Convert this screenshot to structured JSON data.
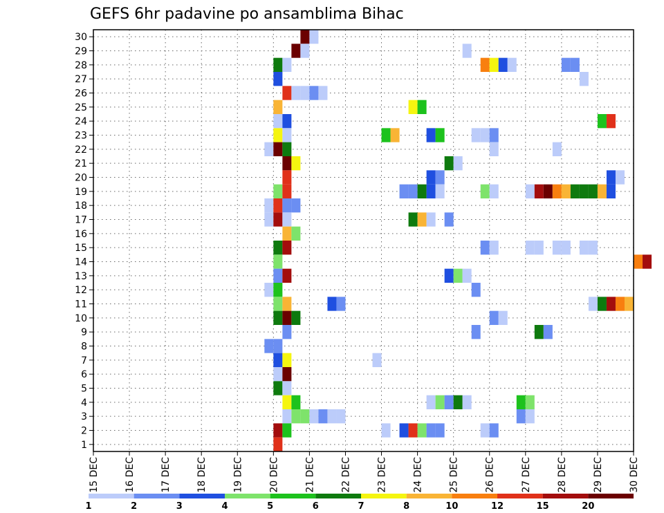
{
  "chart_data": {
    "type": "heatmap",
    "title": "GEFS 6hr padavine po ansamblima Bihac",
    "xlabel": "",
    "ylabel": "",
    "x_ticks": [
      "15 DEC",
      "16 DEC",
      "17 DEC",
      "18 DEC",
      "19 DEC",
      "20 DEC",
      "21 DEC",
      "22 DEC",
      "23 DEC",
      "24 DEC",
      "25 DEC",
      "26 DEC",
      "27 DEC",
      "28 DEC",
      "29 DEC",
      "30 DEC"
    ],
    "y_ticks": [
      "1",
      "2",
      "3",
      "4",
      "5",
      "6",
      "7",
      "8",
      "9",
      "10",
      "11",
      "12",
      "13",
      "14",
      "15",
      "16",
      "17",
      "18",
      "19",
      "20",
      "21",
      "22",
      "23",
      "24",
      "25",
      "26",
      "27",
      "28",
      "29",
      "30"
    ],
    "grid": true,
    "legend_placement": "bottom",
    "levels": [
      "1",
      "2",
      "3",
      "4",
      "5",
      "6",
      "7",
      "8",
      "10",
      "12",
      "15",
      "20"
    ],
    "colors": [
      "#bcccfa",
      "#6b8ef2",
      "#1f4fe0",
      "#7ee36b",
      "#1dc21d",
      "#0e7a0e",
      "#f5f510",
      "#f9b435",
      "#f87f0f",
      "#e0311a",
      "#a30d0d",
      "#6b0000"
    ],
    "cells": [
      {
        "m": 30,
        "d": 20.75,
        "c": 11
      },
      {
        "m": 30,
        "d": 21.0,
        "c": 0
      },
      {
        "m": 29,
        "d": 20.5,
        "c": 11
      },
      {
        "m": 29,
        "d": 20.75,
        "c": 0
      },
      {
        "m": 29,
        "d": 25.25,
        "c": 0
      },
      {
        "m": 28,
        "d": 20.0,
        "c": 5
      },
      {
        "m": 28,
        "d": 20.25,
        "c": 0
      },
      {
        "m": 28,
        "d": 25.75,
        "c": 8
      },
      {
        "m": 28,
        "d": 26.0,
        "c": 6
      },
      {
        "m": 28,
        "d": 26.25,
        "c": 2
      },
      {
        "m": 28,
        "d": 26.5,
        "c": 0
      },
      {
        "m": 28,
        "d": 28.0,
        "c": 1
      },
      {
        "m": 28,
        "d": 28.25,
        "c": 1
      },
      {
        "m": 27,
        "d": 20.0,
        "c": 2
      },
      {
        "m": 27,
        "d": 28.5,
        "c": 0
      },
      {
        "m": 26,
        "d": 20.25,
        "c": 9
      },
      {
        "m": 26,
        "d": 20.5,
        "c": 0
      },
      {
        "m": 26,
        "d": 20.75,
        "c": 0
      },
      {
        "m": 26,
        "d": 21.0,
        "c": 1
      },
      {
        "m": 26,
        "d": 21.25,
        "c": 0
      },
      {
        "m": 25,
        "d": 20.0,
        "c": 7
      },
      {
        "m": 25,
        "d": 23.75,
        "c": 6
      },
      {
        "m": 25,
        "d": 24.0,
        "c": 4
      },
      {
        "m": 24,
        "d": 20.0,
        "c": 0
      },
      {
        "m": 24,
        "d": 20.25,
        "c": 2
      },
      {
        "m": 24,
        "d": 29.0,
        "c": 4
      },
      {
        "m": 24,
        "d": 29.25,
        "c": 9
      },
      {
        "m": 23,
        "d": 20.0,
        "c": 6
      },
      {
        "m": 23,
        "d": 20.25,
        "c": 0
      },
      {
        "m": 23,
        "d": 23.0,
        "c": 4
      },
      {
        "m": 23,
        "d": 23.25,
        "c": 7
      },
      {
        "m": 23,
        "d": 24.25,
        "c": 2
      },
      {
        "m": 23,
        "d": 24.5,
        "c": 4
      },
      {
        "m": 23,
        "d": 25.5,
        "c": 0
      },
      {
        "m": 23,
        "d": 25.75,
        "c": 0
      },
      {
        "m": 23,
        "d": 26.0,
        "c": 1
      },
      {
        "m": 22,
        "d": 19.75,
        "c": 0
      },
      {
        "m": 22,
        "d": 20.0,
        "c": 11
      },
      {
        "m": 22,
        "d": 20.25,
        "c": 5
      },
      {
        "m": 22,
        "d": 26.0,
        "c": 0
      },
      {
        "m": 22,
        "d": 27.75,
        "c": 0
      },
      {
        "m": 21,
        "d": 20.25,
        "c": 11
      },
      {
        "m": 21,
        "d": 20.5,
        "c": 6
      },
      {
        "m": 21,
        "d": 24.75,
        "c": 5
      },
      {
        "m": 21,
        "d": 25.0,
        "c": 0
      },
      {
        "m": 20,
        "d": 20.25,
        "c": 9
      },
      {
        "m": 20,
        "d": 24.25,
        "c": 2
      },
      {
        "m": 20,
        "d": 24.5,
        "c": 1
      },
      {
        "m": 20,
        "d": 29.25,
        "c": 2
      },
      {
        "m": 20,
        "d": 29.5,
        "c": 0
      },
      {
        "m": 19,
        "d": 20.0,
        "c": 3
      },
      {
        "m": 19,
        "d": 20.25,
        "c": 9
      },
      {
        "m": 19,
        "d": 23.5,
        "c": 1
      },
      {
        "m": 19,
        "d": 23.75,
        "c": 1
      },
      {
        "m": 19,
        "d": 24.0,
        "c": 5
      },
      {
        "m": 19,
        "d": 24.25,
        "c": 2
      },
      {
        "m": 19,
        "d": 24.5,
        "c": 0
      },
      {
        "m": 19,
        "d": 25.75,
        "c": 3
      },
      {
        "m": 19,
        "d": 26.0,
        "c": 0
      },
      {
        "m": 19,
        "d": 27.0,
        "c": 0
      },
      {
        "m": 19,
        "d": 27.25,
        "c": 10
      },
      {
        "m": 19,
        "d": 27.5,
        "c": 11
      },
      {
        "m": 19,
        "d": 27.75,
        "c": 8
      },
      {
        "m": 19,
        "d": 28.0,
        "c": 7
      },
      {
        "m": 19,
        "d": 28.25,
        "c": 5
      },
      {
        "m": 19,
        "d": 28.5,
        "c": 5
      },
      {
        "m": 19,
        "d": 28.75,
        "c": 5
      },
      {
        "m": 19,
        "d": 29.0,
        "c": 7
      },
      {
        "m": 19,
        "d": 29.25,
        "c": 2
      },
      {
        "m": 18,
        "d": 19.75,
        "c": 0
      },
      {
        "m": 18,
        "d": 20.0,
        "c": 9
      },
      {
        "m": 18,
        "d": 20.25,
        "c": 1
      },
      {
        "m": 18,
        "d": 20.5,
        "c": 1
      },
      {
        "m": 17,
        "d": 19.75,
        "c": 0
      },
      {
        "m": 17,
        "d": 20.0,
        "c": 10
      },
      {
        "m": 17,
        "d": 20.25,
        "c": 0
      },
      {
        "m": 17,
        "d": 23.75,
        "c": 5
      },
      {
        "m": 17,
        "d": 24.0,
        "c": 7
      },
      {
        "m": 17,
        "d": 24.25,
        "c": 0
      },
      {
        "m": 17,
        "d": 24.75,
        "c": 1
      },
      {
        "m": 16,
        "d": 20.25,
        "c": 7
      },
      {
        "m": 16,
        "d": 20.5,
        "c": 3
      },
      {
        "m": 15,
        "d": 20.0,
        "c": 5
      },
      {
        "m": 15,
        "d": 20.25,
        "c": 10
      },
      {
        "m": 15,
        "d": 25.75,
        "c": 1
      },
      {
        "m": 15,
        "d": 26.0,
        "c": 0
      },
      {
        "m": 15,
        "d": 27.0,
        "c": 0
      },
      {
        "m": 15,
        "d": 27.25,
        "c": 0
      },
      {
        "m": 15,
        "d": 27.75,
        "c": 0
      },
      {
        "m": 15,
        "d": 28.0,
        "c": 0
      },
      {
        "m": 15,
        "d": 28.5,
        "c": 0
      },
      {
        "m": 15,
        "d": 28.75,
        "c": 0
      },
      {
        "m": 14,
        "d": 20.0,
        "c": 3
      },
      {
        "m": 14,
        "d": 30.0,
        "c": 8
      },
      {
        "m": 14,
        "d": 30.25,
        "c": 10
      },
      {
        "m": 13,
        "d": 20.0,
        "c": 1
      },
      {
        "m": 13,
        "d": 20.25,
        "c": 10
      },
      {
        "m": 13,
        "d": 24.75,
        "c": 2
      },
      {
        "m": 13,
        "d": 25.0,
        "c": 3
      },
      {
        "m": 13,
        "d": 25.25,
        "c": 0
      },
      {
        "m": 12,
        "d": 19.75,
        "c": 0
      },
      {
        "m": 12,
        "d": 20.0,
        "c": 4
      },
      {
        "m": 12,
        "d": 25.5,
        "c": 1
      },
      {
        "m": 11,
        "d": 20.0,
        "c": 3
      },
      {
        "m": 11,
        "d": 20.25,
        "c": 7
      },
      {
        "m": 11,
        "d": 21.5,
        "c": 2
      },
      {
        "m": 11,
        "d": 21.75,
        "c": 1
      },
      {
        "m": 11,
        "d": 28.75,
        "c": 0
      },
      {
        "m": 11,
        "d": 29.0,
        "c": 5
      },
      {
        "m": 11,
        "d": 29.25,
        "c": 10
      },
      {
        "m": 11,
        "d": 29.5,
        "c": 8
      },
      {
        "m": 11,
        "d": 29.75,
        "c": 7
      },
      {
        "m": 10,
        "d": 20.0,
        "c": 5
      },
      {
        "m": 10,
        "d": 20.25,
        "c": 11
      },
      {
        "m": 10,
        "d": 20.5,
        "c": 5
      },
      {
        "m": 10,
        "d": 26.0,
        "c": 1
      },
      {
        "m": 10,
        "d": 26.25,
        "c": 0
      },
      {
        "m": 9,
        "d": 20.25,
        "c": 1
      },
      {
        "m": 9,
        "d": 25.5,
        "c": 1
      },
      {
        "m": 9,
        "d": 27.25,
        "c": 5
      },
      {
        "m": 9,
        "d": 27.5,
        "c": 1
      },
      {
        "m": 8,
        "d": 19.75,
        "c": 1
      },
      {
        "m": 8,
        "d": 20.0,
        "c": 1
      },
      {
        "m": 7,
        "d": 20.0,
        "c": 2
      },
      {
        "m": 7,
        "d": 20.25,
        "c": 6
      },
      {
        "m": 7,
        "d": 22.75,
        "c": 0
      },
      {
        "m": 6,
        "d": 20.0,
        "c": 0
      },
      {
        "m": 6,
        "d": 20.25,
        "c": 11
      },
      {
        "m": 5,
        "d": 20.0,
        "c": 5
      },
      {
        "m": 5,
        "d": 20.25,
        "c": 0
      },
      {
        "m": 4,
        "d": 20.25,
        "c": 6
      },
      {
        "m": 4,
        "d": 20.5,
        "c": 4
      },
      {
        "m": 4,
        "d": 24.25,
        "c": 0
      },
      {
        "m": 4,
        "d": 24.5,
        "c": 3
      },
      {
        "m": 4,
        "d": 24.75,
        "c": 1
      },
      {
        "m": 4,
        "d": 25.0,
        "c": 5
      },
      {
        "m": 4,
        "d": 25.25,
        "c": 0
      },
      {
        "m": 4,
        "d": 26.75,
        "c": 4
      },
      {
        "m": 4,
        "d": 27.0,
        "c": 3
      },
      {
        "m": 3,
        "d": 20.25,
        "c": 0
      },
      {
        "m": 3,
        "d": 20.5,
        "c": 3
      },
      {
        "m": 3,
        "d": 20.75,
        "c": 3
      },
      {
        "m": 3,
        "d": 21.0,
        "c": 0
      },
      {
        "m": 3,
        "d": 21.25,
        "c": 1
      },
      {
        "m": 3,
        "d": 21.5,
        "c": 0
      },
      {
        "m": 3,
        "d": 21.75,
        "c": 0
      },
      {
        "m": 3,
        "d": 26.75,
        "c": 1
      },
      {
        "m": 3,
        "d": 27.0,
        "c": 0
      },
      {
        "m": 2,
        "d": 20.0,
        "c": 10
      },
      {
        "m": 2,
        "d": 20.25,
        "c": 4
      },
      {
        "m": 2,
        "d": 23.0,
        "c": 0
      },
      {
        "m": 2,
        "d": 23.5,
        "c": 2
      },
      {
        "m": 2,
        "d": 23.75,
        "c": 9
      },
      {
        "m": 2,
        "d": 24.0,
        "c": 3
      },
      {
        "m": 2,
        "d": 24.25,
        "c": 1
      },
      {
        "m": 2,
        "d": 24.5,
        "c": 1
      },
      {
        "m": 2,
        "d": 25.75,
        "c": 0
      },
      {
        "m": 2,
        "d": 26.0,
        "c": 1
      },
      {
        "m": 1,
        "d": 20.0,
        "c": 9
      }
    ]
  }
}
